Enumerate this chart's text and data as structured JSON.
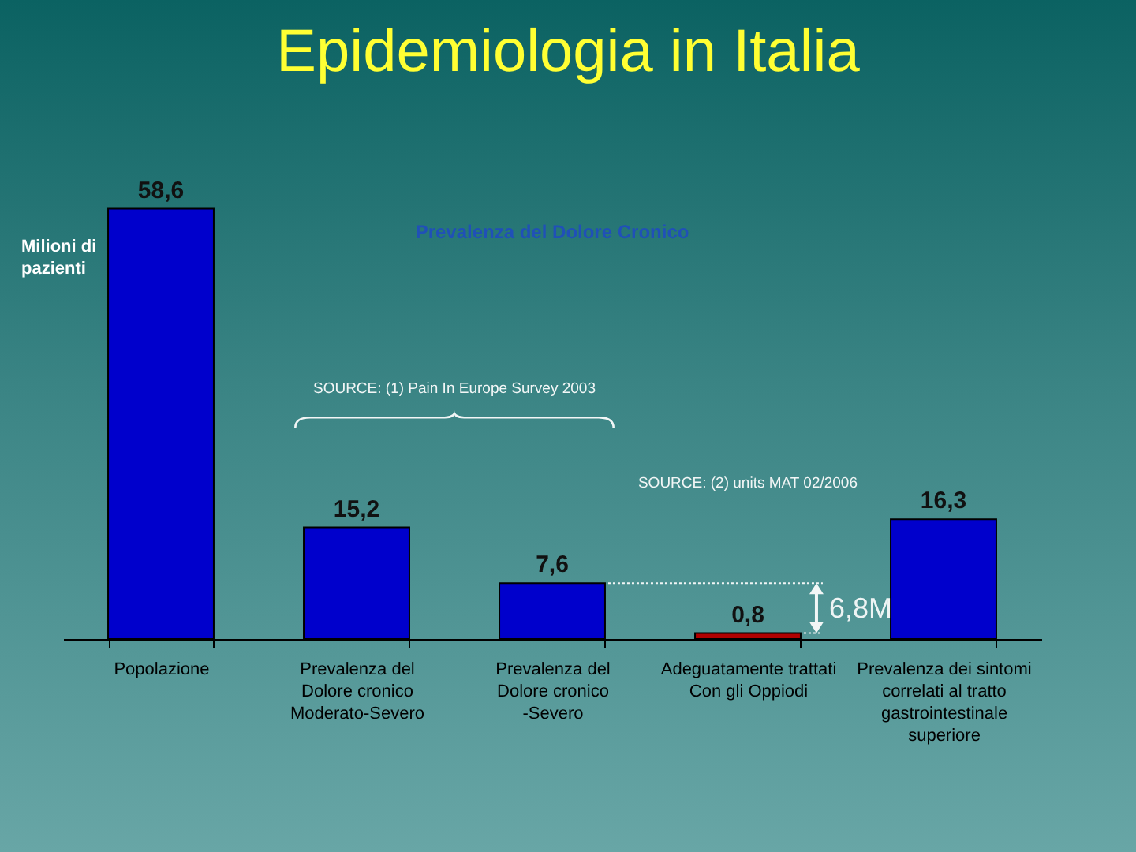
{
  "chart_data": {
    "type": "bar",
    "title": "Epidemiologia in Italia",
    "subtitle": "Prevalenza del Dolore Cronico",
    "ylabel": "Milioni di\npazienti",
    "categories": [
      "Popolazione",
      "Prevalenza del\nDolore cronico\nModerato-Severo",
      "Prevalenza del\nDolore cronico\n-Severo",
      "Adeguatamente trattati\nCon gli Oppiodi",
      "Prevalenza dei sintomi\ncorrelati al tratto\ngastrointestinale\nsuperiore"
    ],
    "values": [
      58.6,
      15.2,
      7.6,
      0.8,
      16.3
    ],
    "colors": [
      "#0000cc",
      "#0000cc",
      "#0000cc",
      "#b00000",
      "#0000cc"
    ],
    "value_labels": [
      "58,6",
      "15,2",
      "7,6",
      "0,8",
      "16,3"
    ],
    "annotations": [
      "SOURCE: (1) Pain In Europe Survey 2003",
      "SOURCE: (2) units MAT 02/2006",
      "6,8M"
    ]
  }
}
